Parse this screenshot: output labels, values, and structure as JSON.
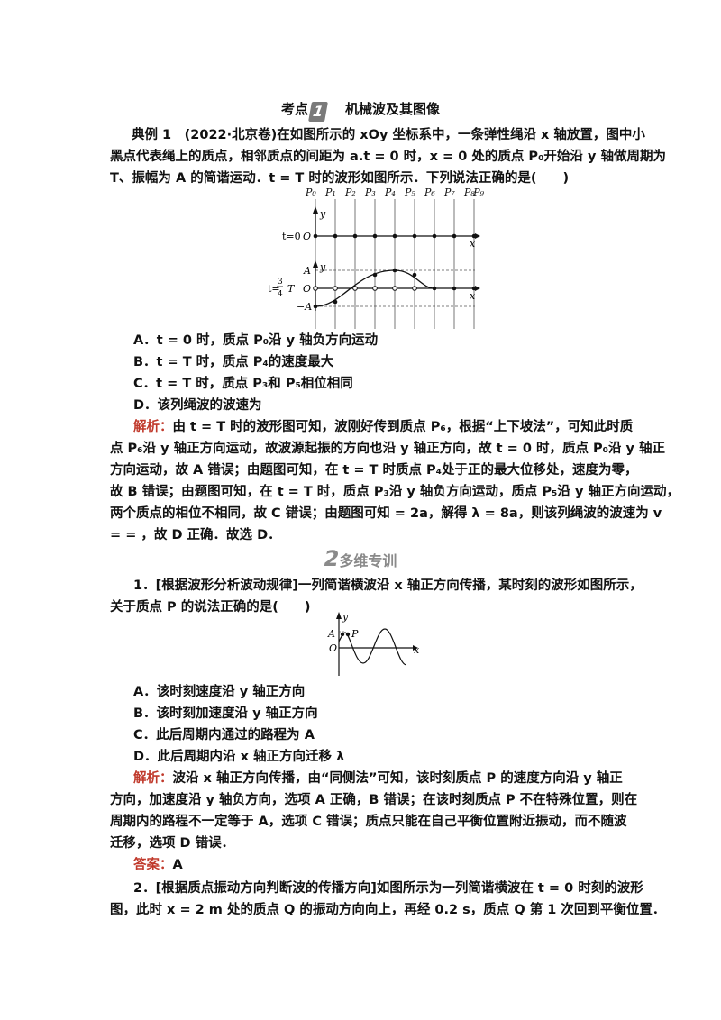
{
  "topic": {
    "prefix": "考点",
    "num": "1",
    "title": "机械波及其图像"
  },
  "example": {
    "l1": "典例 1　(2022·北京卷)在如图所示的 xOy 坐标系中，一条弹性绳沿 x 轴放置，图中小",
    "l2": "黑点代表绳上的质点，相邻质点的间距为 a.t = 0 时，x = 0 处的质点 P₀开始沿 y 轴做周期为",
    "l3": "T、振幅为 A 的简谐运动．t = T 时的波形如图所示．下列说法正确的是(　　)"
  },
  "fig1": {
    "points": [
      "P₀",
      "P₁",
      "P₂",
      "P₃",
      "P₄",
      "P₅",
      "P₆",
      "P₇",
      "P₈",
      "P₉"
    ],
    "t0": "t=0",
    "o": "O",
    "x": "x",
    "y": "y",
    "a": "A",
    "neg_a": "−A",
    "t34": "t=",
    "frac_n": "3",
    "frac_d": "4",
    "tT": "T"
  },
  "options1": [
    "A．t = 0 时，质点 P₀沿 y 轴负方向运动",
    "B．t = T 时，质点 P₄的速度最大",
    "C．t = T 时，质点 P₃和 P₅相位相同",
    "D．该列绳波的波速为"
  ],
  "analysis1": {
    "label": "解析：",
    "l1": "由 t = T 时的波形图可知，波刚好传到质点 P₆，根据“上下坡法”，可知此时质",
    "l2": "点 P₆沿 y 轴正方向运动，故波源起振的方向也沿 y 轴正方向，故 t = 0 时，质点 P₀沿 y 轴正",
    "l3": "方向运动，故 A 错误；由题图可知，在 t = T 时质点 P₄处于正的最大位移处，速度为零，",
    "l4": "故 B 错误；由题图可知，在 t = T 时，质点 P₃沿 y 轴负方向运动，质点 P₅沿 y 轴正方向运动，",
    "l5": "两个质点的相位不相同，故 C 错误；由题图可知 = 2a，解得 λ = 8a，则该列绳波的波速为 v",
    "l6": "= = ，故 D 正确．故选 D．"
  },
  "section": {
    "num": "2",
    "title": "多维专训"
  },
  "q1": {
    "l1": "1．[根据波形分析波动规律]一列简谐横波沿 x 轴正方向传播，某时刻的波形如图所示，",
    "l2": "关于质点 P 的说法正确的是(　　)"
  },
  "fig2": {
    "y": "y",
    "a": "A",
    "p": "P",
    "o": "O",
    "x": "x"
  },
  "options2": [
    "A．该时刻速度沿 y 轴正方向",
    "B．该时刻加速度沿 y 轴正方向",
    "C．此后周期内通过的路程为 A",
    "D．此后周期内沿 x 轴正方向迁移 λ"
  ],
  "analysis2": {
    "label": "解析：",
    "l1": "波沿 x 轴正方向传播，由“同侧法”可知，该时刻质点 P 的速度方向沿 y 轴正",
    "l2": "方向，加速度沿 y 轴负方向，选项 A 正确，B 错误；在该时刻质点 P 不在特殊位置，则在",
    "l3": "周期内的路程不一定等于 A，选项 C 错误；质点只能在自己平衡位置附近振动，而不随波",
    "l4": "迁移，选项 D 错误．"
  },
  "answer": {
    "label": "答案：",
    "value": "A"
  },
  "q2": {
    "l1": "2．[根据质点振动方向判断波的传播方向]如图所示为一列简谐横波在 t = 0 时刻的波形",
    "l2": "图，此时 x = 2 m 处的质点 Q 的振动方向向上，再经 0.2 s，质点 Q 第 1 次回到平衡位置．"
  }
}
